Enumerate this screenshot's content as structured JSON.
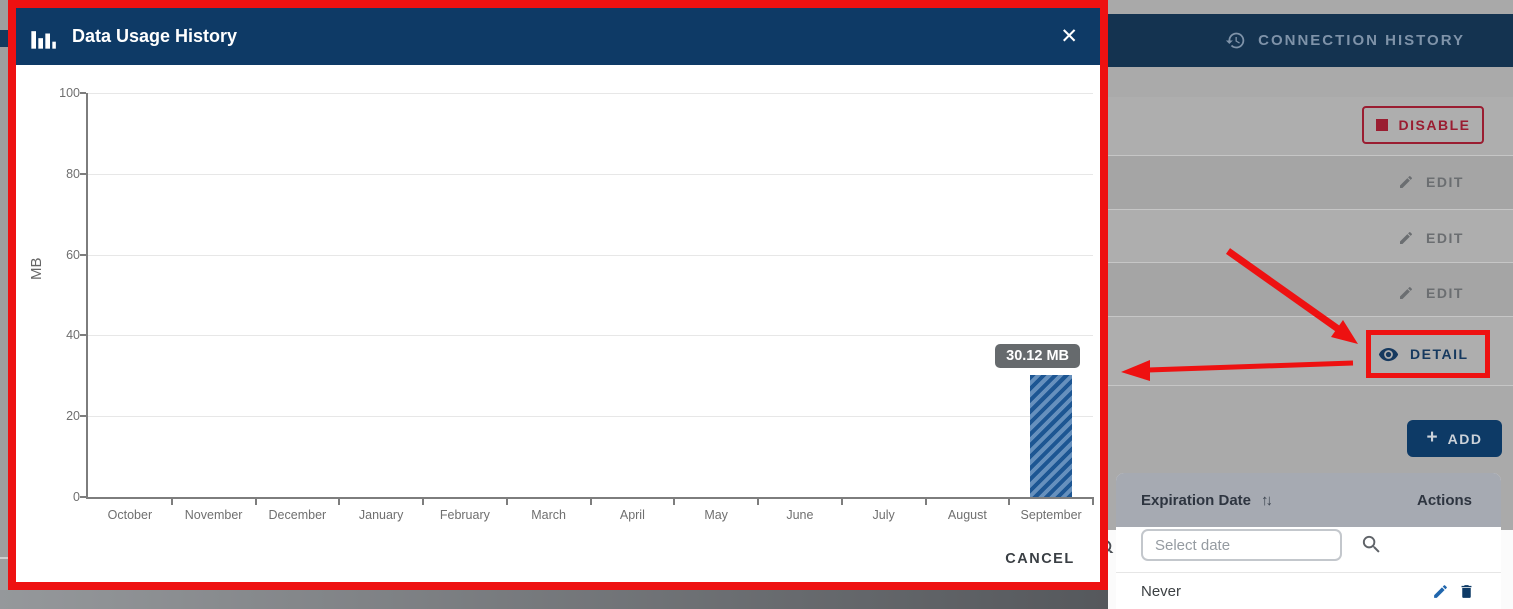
{
  "colors": {
    "navy_accent": "#0d3a66",
    "modal_header": "#0e3a66",
    "background_navbar": "#143350",
    "annotation_red": "#ee1111",
    "disable_red": "#9a1d31",
    "bar_stripe_dark": "#1d5693",
    "bar_stripe_light": "#6690bd",
    "tooltip_bg": "#666a6d"
  },
  "modal": {
    "title": "Data Usage History",
    "title_icon": "bar-chart-icon",
    "close_glyph": "✕",
    "cancel_label": "CANCEL"
  },
  "chart_data": {
    "type": "bar",
    "title": "Data Usage History",
    "xlabel": "",
    "ylabel": "MB",
    "ylim": [
      0,
      100
    ],
    "yticks": [
      0,
      20,
      40,
      60,
      80,
      100
    ],
    "categories": [
      "October",
      "November",
      "December",
      "January",
      "February",
      "March",
      "April",
      "May",
      "June",
      "July",
      "August",
      "September"
    ],
    "values": [
      0,
      0,
      0,
      0,
      0,
      0,
      0,
      0,
      0,
      0,
      0,
      30.12
    ],
    "unit": "MB",
    "tooltip_label": "30.12 MB",
    "grid": true,
    "legend": false,
    "bar_style": "diagonal-hatch"
  },
  "background_page": {
    "connection_history_tab": {
      "label": "CONNECTION HISTORY",
      "icon": "history-clock-icon"
    },
    "buttons": {
      "disable": "DISABLE",
      "edit": "EDIT",
      "detail": "DETAIL",
      "add": "ADD",
      "add_plus_glyph": "+"
    },
    "table": {
      "expiration_header": "Expiration Date",
      "sort_glyph": "↑↓",
      "actions_header": "Actions",
      "date_filter_placeholder": "Select date",
      "rows": [
        {
          "expiration": "Never"
        }
      ]
    }
  }
}
